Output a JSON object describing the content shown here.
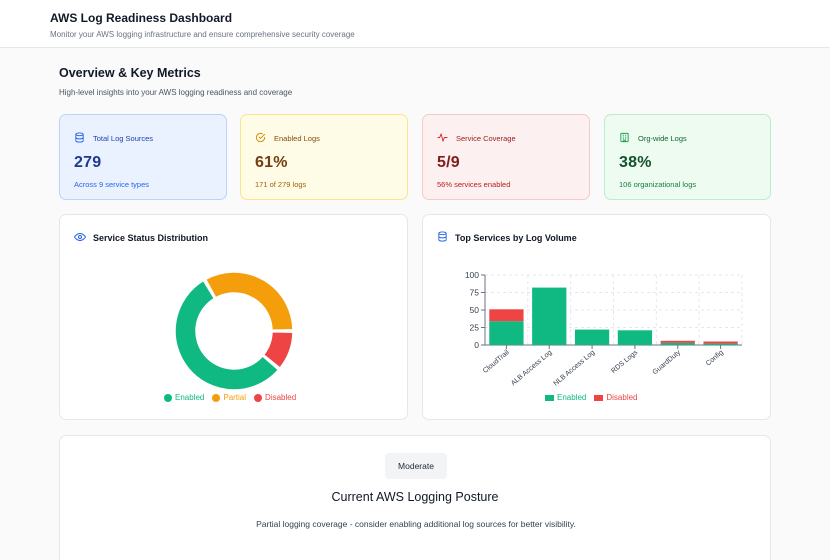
{
  "header": {
    "title": "AWS Log Readiness Dashboard",
    "subtitle": "Monitor your AWS logging infrastructure and ensure comprehensive security coverage"
  },
  "overview": {
    "title": "Overview & Key Metrics",
    "subtitle": "High-level insights into your AWS logging readiness and coverage"
  },
  "metrics": [
    {
      "label": "Total Log Sources",
      "value": "279",
      "detail": "Across 9 service types",
      "icon": "database-icon"
    },
    {
      "label": "Enabled Logs",
      "value": "61%",
      "detail": "171 of 279 logs",
      "icon": "check-circle-icon"
    },
    {
      "label": "Service Coverage",
      "value": "5/9",
      "detail": "56% services enabled",
      "icon": "activity-icon"
    },
    {
      "label": "Org-wide Logs",
      "value": "38%",
      "detail": "106 organizational logs",
      "icon": "building-icon"
    }
  ],
  "colors": {
    "enabled": "#10b981",
    "partial": "#f59e0b",
    "disabled": "#ef4444"
  },
  "chart_data": [
    {
      "type": "pie",
      "title": "Service Status Distribution",
      "categories": [
        "Enabled",
        "Partial",
        "Disabled"
      ],
      "values": [
        5,
        3,
        1
      ],
      "legend": "bottom"
    },
    {
      "type": "bar",
      "stacked": true,
      "title": "Top Services by Log Volume",
      "categories": [
        "CloudTrail",
        "ALB Access Log",
        "NLB Access Log",
        "RDS Logs",
        "GuardDuty",
        "Config"
      ],
      "series": [
        {
          "name": "Enabled",
          "values": [
            34,
            82,
            22,
            21,
            3,
            2
          ]
        },
        {
          "name": "Disabled",
          "values": [
            17,
            0,
            0,
            0,
            3,
            3
          ]
        }
      ],
      "yticks": [
        "0",
        "25",
        "50",
        "75",
        "100"
      ],
      "ylim": [
        0,
        100
      ],
      "grid": true,
      "legend": "bottom"
    }
  ],
  "posture": {
    "badge": "Moderate",
    "title": "Current AWS Logging Posture",
    "description": "Partial logging coverage - consider enabling additional log sources for better visibility."
  }
}
